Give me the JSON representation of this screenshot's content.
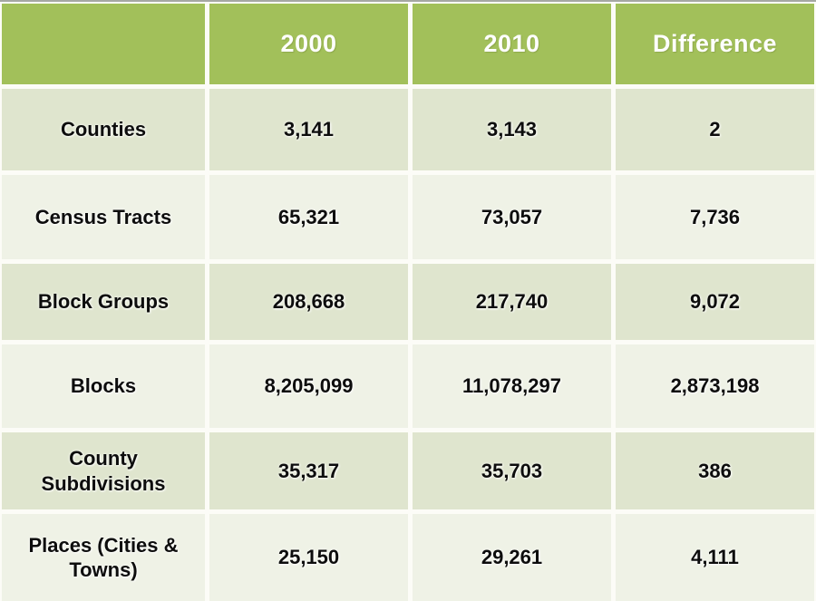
{
  "chart_data": {
    "type": "table",
    "title": "",
    "columns": [
      "",
      "2000",
      "2010",
      "Difference"
    ],
    "rows": [
      {
        "label": "Counties",
        "y2000": "3,141",
        "y2010": "3,143",
        "difference": "2"
      },
      {
        "label": "Census Tracts",
        "y2000": "65,321",
        "y2010": "73,057",
        "difference": "7,736"
      },
      {
        "label": "Block Groups",
        "y2000": "208,668",
        "y2010": "217,740",
        "difference": "9,072"
      },
      {
        "label": "Blocks",
        "y2000": "8,205,099",
        "y2010": "11,078,297",
        "difference": "2,873,198"
      },
      {
        "label": "County Subdivisions",
        "y2000": "35,317",
        "y2010": "35,703",
        "difference": "386"
      },
      {
        "label": "Places (Cities & Towns)",
        "y2000": "25,150",
        "y2010": "29,261",
        "difference": "4,111"
      }
    ],
    "colors": {
      "header_background": "#a2c05a",
      "header_text": "#ffffff",
      "row_alternate_dark": "#dfe5ce",
      "row_alternate_light": "#eff2e6",
      "gutter": "#fcfcf7",
      "body_text": "#0d0d0d",
      "top_hairline": "#a6a8a3"
    },
    "layout": {
      "grid": "white gutters between cells",
      "header_position": "top row"
    }
  }
}
